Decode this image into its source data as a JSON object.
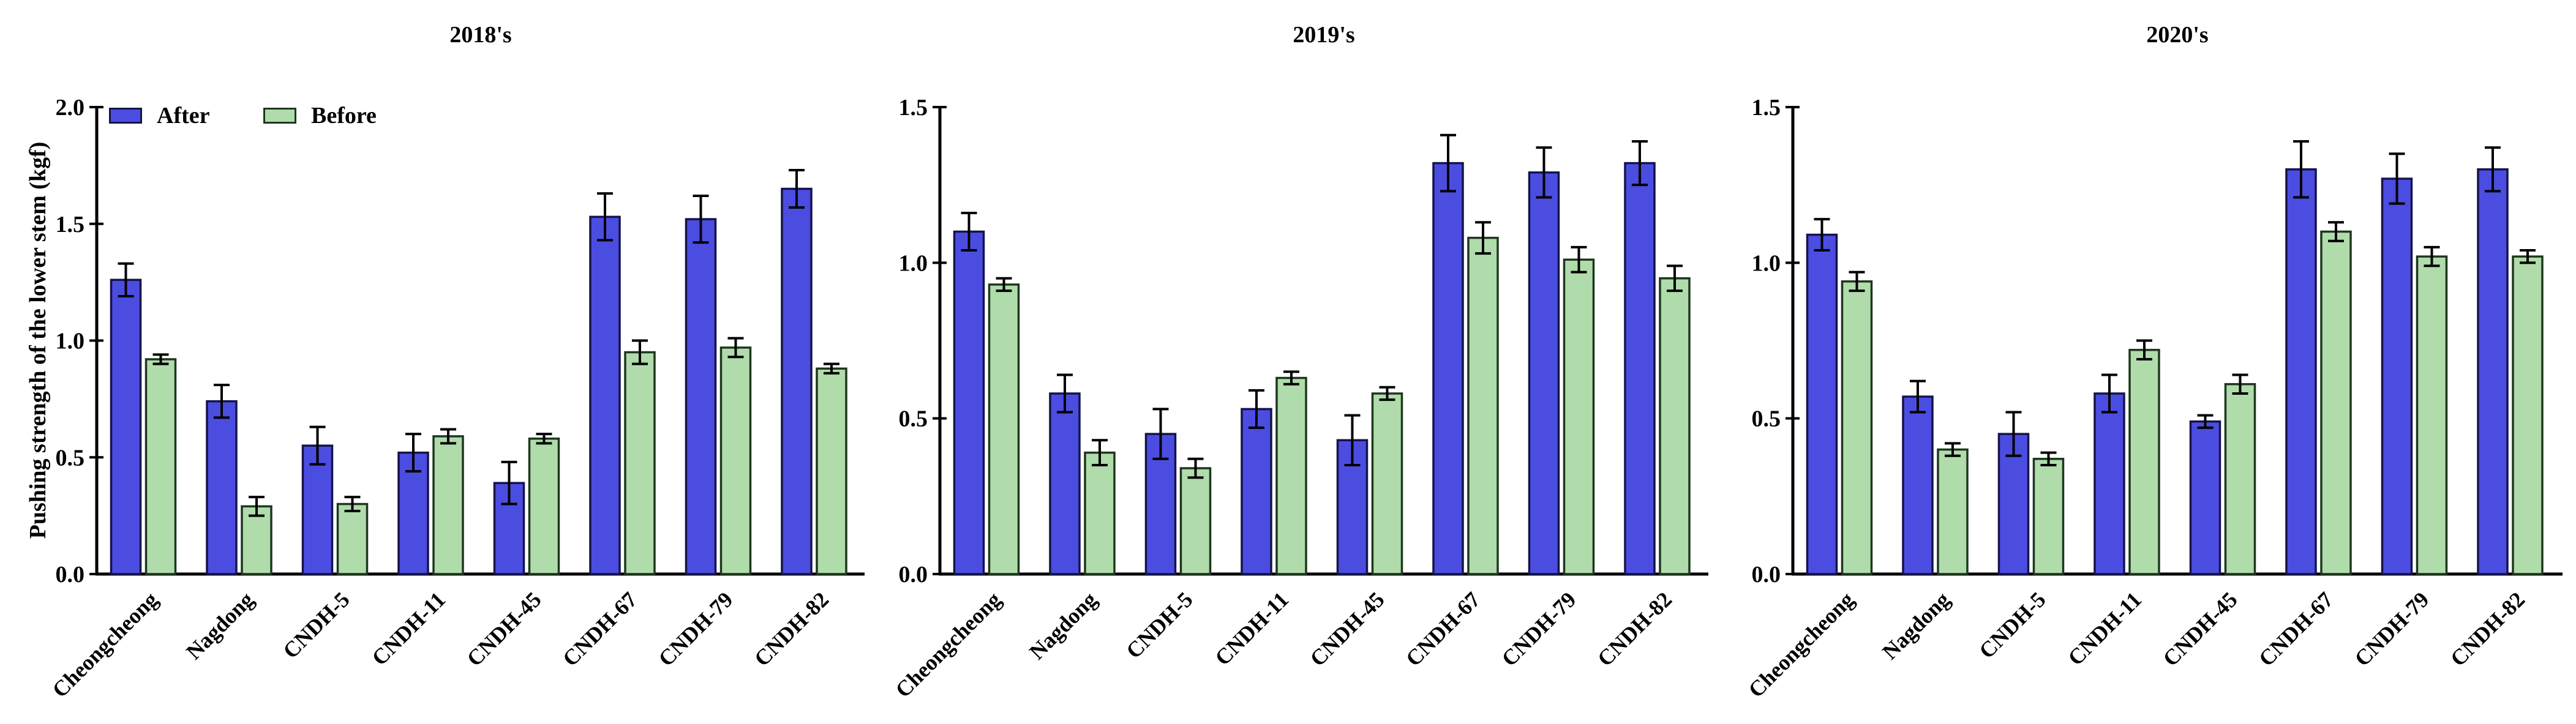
{
  "figure": {
    "ylabel": "Pushing strength of the lower stem (kgf)",
    "legend": {
      "after_label": "After",
      "before_label": "Before"
    },
    "colors": {
      "after_fill": "#4b4de1",
      "after_edge": "#14144b",
      "before_fill": "#b0dcab",
      "before_edge": "#1e361e",
      "error_bar": "#000000",
      "axis": "#000000"
    }
  },
  "chart_data": [
    {
      "type": "bar",
      "title": "2018's",
      "ylabel": "Pushing strength of the lower stem (kgf)",
      "categories": [
        "Cheongcheong",
        "Nagdong",
        "CNDH-5",
        "CNDH-11",
        "CNDH-45",
        "CNDH-67",
        "CNDH-79",
        "CNDH-82"
      ],
      "series": [
        {
          "name": "After",
          "values": [
            1.26,
            0.74,
            0.55,
            0.52,
            0.39,
            1.53,
            1.52,
            1.65
          ],
          "errors": [
            0.07,
            0.07,
            0.08,
            0.08,
            0.09,
            0.1,
            0.1,
            0.08
          ]
        },
        {
          "name": "Before",
          "values": [
            0.92,
            0.29,
            0.3,
            0.59,
            0.58,
            0.95,
            0.97,
            0.88
          ],
          "errors": [
            0.02,
            0.04,
            0.03,
            0.03,
            0.02,
            0.05,
            0.04,
            0.02
          ]
        }
      ],
      "ylim": [
        0,
        2.0
      ],
      "yticks": [
        "0.0",
        "0.5",
        "1.0",
        "1.5",
        "2.0"
      ],
      "legend": [
        "After",
        "Before"
      ],
      "legend_position": "top-left",
      "grid": false
    },
    {
      "type": "bar",
      "title": "2019's",
      "ylabel": "",
      "categories": [
        "Cheongcheong",
        "Nagdong",
        "CNDH-5",
        "CNDH-11",
        "CNDH-45",
        "CNDH-67",
        "CNDH-79",
        "CNDH-82"
      ],
      "series": [
        {
          "name": "After",
          "values": [
            1.1,
            0.58,
            0.45,
            0.53,
            0.43,
            1.32,
            1.29,
            1.32
          ],
          "errors": [
            0.06,
            0.06,
            0.08,
            0.06,
            0.08,
            0.09,
            0.08,
            0.07
          ]
        },
        {
          "name": "Before",
          "values": [
            0.93,
            0.39,
            0.34,
            0.63,
            0.58,
            1.08,
            1.01,
            0.95
          ],
          "errors": [
            0.02,
            0.04,
            0.03,
            0.02,
            0.02,
            0.05,
            0.04,
            0.04
          ]
        }
      ],
      "ylim": [
        0,
        1.5
      ],
      "yticks": [
        "0.0",
        "0.5",
        "1.0",
        "1.5"
      ],
      "legend": [],
      "legend_position": "none",
      "grid": false
    },
    {
      "type": "bar",
      "title": "2020's",
      "ylabel": "",
      "categories": [
        "Cheongcheong",
        "Nagdong",
        "CNDH-5",
        "CNDH-11",
        "CNDH-45",
        "CNDH-67",
        "CNDH-79",
        "CNDH-82"
      ],
      "series": [
        {
          "name": "After",
          "values": [
            1.09,
            0.57,
            0.45,
            0.58,
            0.49,
            1.3,
            1.27,
            1.3
          ],
          "errors": [
            0.05,
            0.05,
            0.07,
            0.06,
            0.02,
            0.09,
            0.08,
            0.07
          ]
        },
        {
          "name": "Before",
          "values": [
            0.94,
            0.4,
            0.37,
            0.72,
            0.61,
            1.1,
            1.02,
            1.02
          ],
          "errors": [
            0.03,
            0.02,
            0.02,
            0.03,
            0.03,
            0.03,
            0.03,
            0.02
          ]
        }
      ],
      "ylim": [
        0,
        1.5
      ],
      "yticks": [
        "0.0",
        "0.5",
        "1.0",
        "1.5"
      ],
      "legend": [],
      "legend_position": "none",
      "grid": false
    }
  ]
}
